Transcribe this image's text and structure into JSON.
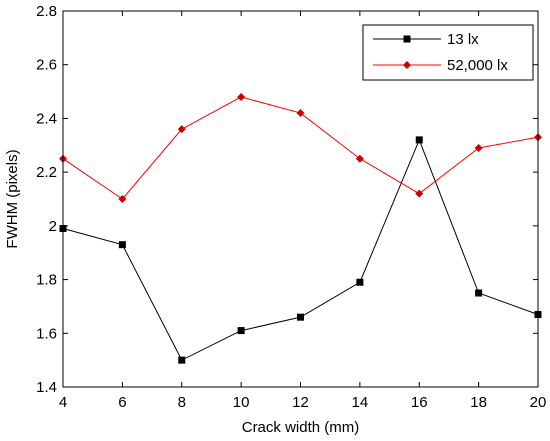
{
  "chart_data": {
    "type": "line",
    "xlabel": "Crack width (mm)",
    "ylabel": "FWHM (pixels)",
    "xlim": [
      4,
      20
    ],
    "ylim": [
      1.4,
      2.8
    ],
    "x_ticks": [
      4,
      6,
      8,
      10,
      12,
      14,
      16,
      18,
      20
    ],
    "y_ticks": [
      1.4,
      1.6,
      1.8,
      2,
      2.2,
      2.4,
      2.6,
      2.8
    ],
    "x_tick_labels": [
      "4",
      "6",
      "8",
      "10",
      "12",
      "14",
      "16",
      "18",
      "20"
    ],
    "y_tick_labels": [
      "1.4",
      "1.6",
      "1.8",
      "2",
      "2.2",
      "2.4",
      "2.6",
      "2.8"
    ],
    "grid": false,
    "legend_position": "top-right",
    "x": [
      4,
      6,
      8,
      10,
      12,
      14,
      16,
      18,
      20
    ],
    "series": [
      {
        "name": "13 lx",
        "values": [
          1.99,
          1.93,
          1.5,
          1.61,
          1.66,
          1.79,
          2.32,
          1.75,
          1.67
        ],
        "color": "#000000",
        "marker": "square"
      },
      {
        "name": "52,000 lx",
        "values": [
          2.25,
          2.1,
          2.36,
          2.48,
          2.42,
          2.25,
          2.12,
          2.29,
          2.33
        ],
        "color": "#ff0000",
        "marker_color": "#cc0000",
        "marker": "diamond"
      }
    ]
  }
}
